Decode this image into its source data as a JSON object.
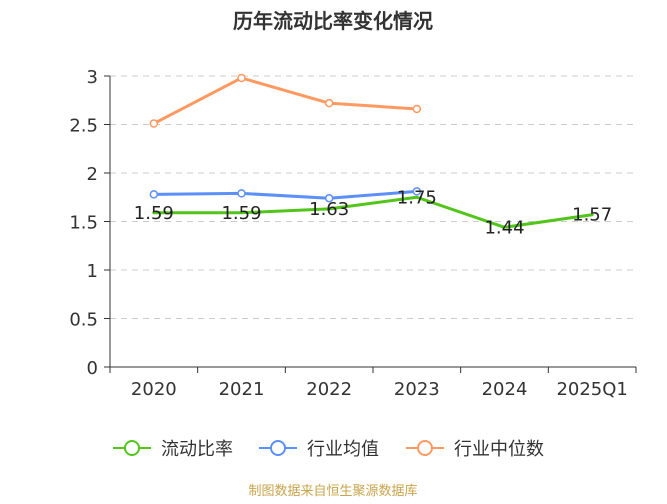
{
  "chart_data": {
    "type": "line",
    "title": "历年流动比率变化情况",
    "categories": [
      "2020",
      "2021",
      "2022",
      "2023",
      "2024",
      "2025Q1"
    ],
    "y_ticks": [
      "0",
      "0.5",
      "1",
      "1.5",
      "2",
      "2.5",
      "3"
    ],
    "ylim": [
      0,
      3
    ],
    "grid": true,
    "legend_position": "bottom",
    "series": [
      {
        "name": "流动比率",
        "color": "#52c41a",
        "values": [
          1.59,
          1.59,
          1.63,
          1.75,
          1.44,
          1.57
        ],
        "labels": [
          "1.59",
          "1.59",
          "1.63",
          "1.75",
          "1.44",
          "1.57"
        ],
        "markers": false
      },
      {
        "name": "行业均值",
        "color": "#5b8ff9",
        "values": [
          1.78,
          1.79,
          1.74,
          1.81,
          null,
          null
        ],
        "markers": true
      },
      {
        "name": "行业中位数",
        "color": "#ff9960",
        "values": [
          2.51,
          2.98,
          2.72,
          2.66,
          null,
          null
        ],
        "markers": true
      }
    ]
  },
  "footer": {
    "source": "制图数据来自恒生聚源数据库"
  }
}
